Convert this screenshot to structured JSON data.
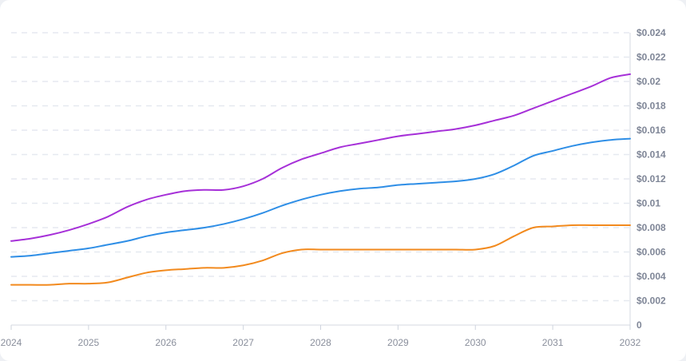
{
  "chart_data": {
    "type": "line",
    "title": "",
    "xlabel": "",
    "ylabel": "",
    "x": [
      2024,
      2024.25,
      2024.5,
      2024.75,
      2025,
      2025.25,
      2025.5,
      2025.75,
      2026,
      2026.25,
      2026.5,
      2026.75,
      2027,
      2027.25,
      2027.5,
      2027.75,
      2028,
      2028.25,
      2028.5,
      2028.75,
      2029,
      2029.25,
      2029.5,
      2029.75,
      2030,
      2030.25,
      2030.5,
      2030.75,
      2031,
      2031.25,
      2031.5,
      2031.75,
      2032
    ],
    "series": [
      {
        "color": "#a630d8",
        "values": [
          0.0069,
          0.0071,
          0.0074,
          0.0078,
          0.0083,
          0.0089,
          0.0097,
          0.0103,
          0.0107,
          0.011,
          0.0111,
          0.0111,
          0.0114,
          0.012,
          0.0129,
          0.0136,
          0.0141,
          0.0146,
          0.0149,
          0.0152,
          0.0155,
          0.0157,
          0.0159,
          0.0161,
          0.0164,
          0.0168,
          0.0172,
          0.0178,
          0.0184,
          0.019,
          0.0196,
          0.0203,
          0.0206
        ]
      },
      {
        "color": "#2e8ee6",
        "values": [
          0.0056,
          0.0057,
          0.0059,
          0.0061,
          0.0063,
          0.0066,
          0.0069,
          0.0073,
          0.0076,
          0.0078,
          0.008,
          0.0083,
          0.0087,
          0.0092,
          0.0098,
          0.0103,
          0.0107,
          0.011,
          0.0112,
          0.0113,
          0.0115,
          0.0116,
          0.0117,
          0.0118,
          0.012,
          0.0124,
          0.0131,
          0.0139,
          0.0143,
          0.0147,
          0.015,
          0.0152,
          0.0153
        ]
      },
      {
        "color": "#f28a1e",
        "values": [
          0.0033,
          0.0033,
          0.0033,
          0.0034,
          0.0034,
          0.0035,
          0.0039,
          0.0043,
          0.0045,
          0.0046,
          0.0047,
          0.0047,
          0.0049,
          0.0053,
          0.0059,
          0.0062,
          0.0062,
          0.0062,
          0.0062,
          0.0062,
          0.0062,
          0.0062,
          0.0062,
          0.0062,
          0.0062,
          0.0065,
          0.0073,
          0.008,
          0.0081,
          0.0082,
          0.0082,
          0.0082,
          0.0082
        ]
      }
    ],
    "yticks": [
      {
        "value": 0,
        "label": "0"
      },
      {
        "value": 0.002,
        "label": "$0.002"
      },
      {
        "value": 0.004,
        "label": "$0.004"
      },
      {
        "value": 0.006,
        "label": "$0.006"
      },
      {
        "value": 0.008,
        "label": "$0.008"
      },
      {
        "value": 0.01,
        "label": "$0.01"
      },
      {
        "value": 0.012,
        "label": "$0.012"
      },
      {
        "value": 0.014,
        "label": "$0.014"
      },
      {
        "value": 0.016,
        "label": "$0.016"
      },
      {
        "value": 0.018,
        "label": "$0.018"
      },
      {
        "value": 0.02,
        "label": "$0.02"
      },
      {
        "value": 0.022,
        "label": "$0.022"
      },
      {
        "value": 0.024,
        "label": "$0.024"
      }
    ],
    "xticks": [
      {
        "value": 2024,
        "label": "2024"
      },
      {
        "value": 2025,
        "label": "2025"
      },
      {
        "value": 2026,
        "label": "2026"
      },
      {
        "value": 2027,
        "label": "2027"
      },
      {
        "value": 2028,
        "label": "2028"
      },
      {
        "value": 2029,
        "label": "2029"
      },
      {
        "value": 2030,
        "label": "2030"
      },
      {
        "value": 2031,
        "label": "2031"
      },
      {
        "value": 2032,
        "label": "2032"
      }
    ],
    "xlim": [
      2024,
      2032
    ],
    "ylim": [
      0,
      0.024
    ],
    "y_axis_side": "right",
    "grid": true,
    "legend": "none"
  }
}
